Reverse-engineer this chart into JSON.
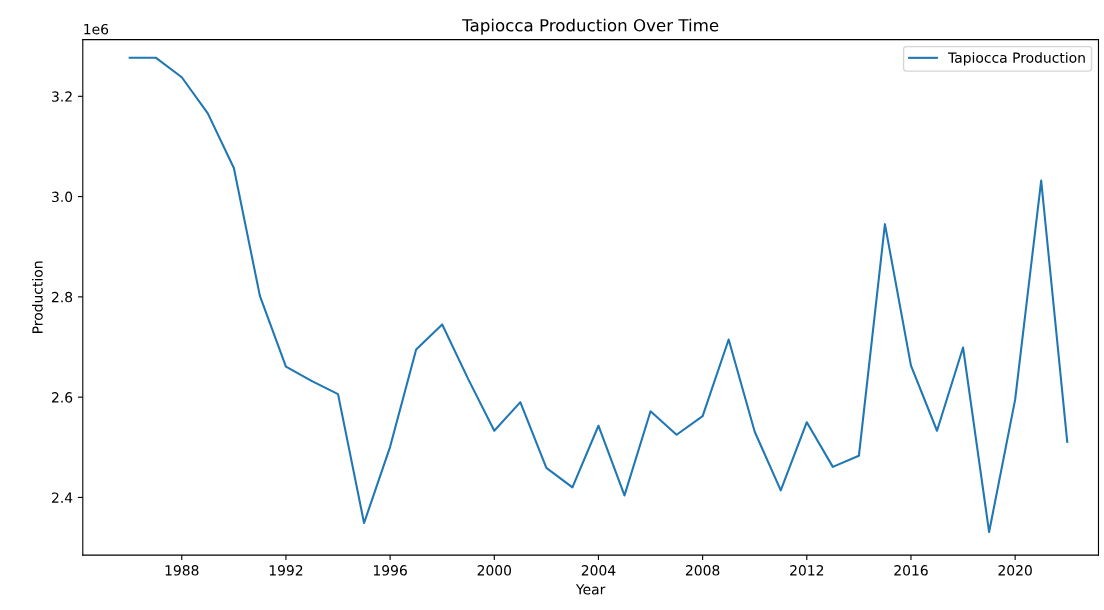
{
  "chart_data": {
    "type": "line",
    "title": "Tapiocca Production Over Time",
    "xlabel": "Year",
    "ylabel": "Production",
    "x": [
      1986,
      1987,
      1988,
      1989,
      1990,
      1991,
      1992,
      1993,
      1994,
      1995,
      1996,
      1997,
      1998,
      1999,
      2000,
      2001,
      2002,
      2003,
      2004,
      2005,
      2006,
      2007,
      2008,
      2009,
      2010,
      2011,
      2012,
      2013,
      2014,
      2015,
      2016,
      2017,
      2018,
      2019,
      2020,
      2021,
      2022
    ],
    "series": [
      {
        "name": "Tapiocca Production",
        "color": "#1f77b4",
        "values": [
          3.277,
          3.277,
          3.238,
          3.166,
          3.057,
          2.802,
          2.661,
          2.632,
          2.606,
          2.349,
          2.501,
          2.695,
          2.745,
          2.636,
          2.533,
          2.59,
          2.459,
          2.42,
          2.543,
          2.404,
          2.572,
          2.525,
          2.562,
          2.715,
          2.531,
          2.414,
          2.55,
          2.461,
          2.483,
          2.945,
          2.663,
          2.533,
          2.699,
          2.331,
          2.595,
          3.032,
          2.511
        ]
      }
    ],
    "xlim": [
      1984.2,
      2023.2
    ],
    "xticks": [
      1988,
      1992,
      1996,
      2000,
      2004,
      2008,
      2012,
      2016,
      2020
    ],
    "ylim": [
      2.285,
      3.313
    ],
    "yticks": [
      2.4,
      2.6,
      2.8,
      {
        "value": 3.0,
        "label": "3.0"
      },
      3.2
    ],
    "annotations": [
      "1e6"
    ],
    "legend": "top right",
    "grid": false,
    "marker": "none",
    "line_style": "solid"
  }
}
